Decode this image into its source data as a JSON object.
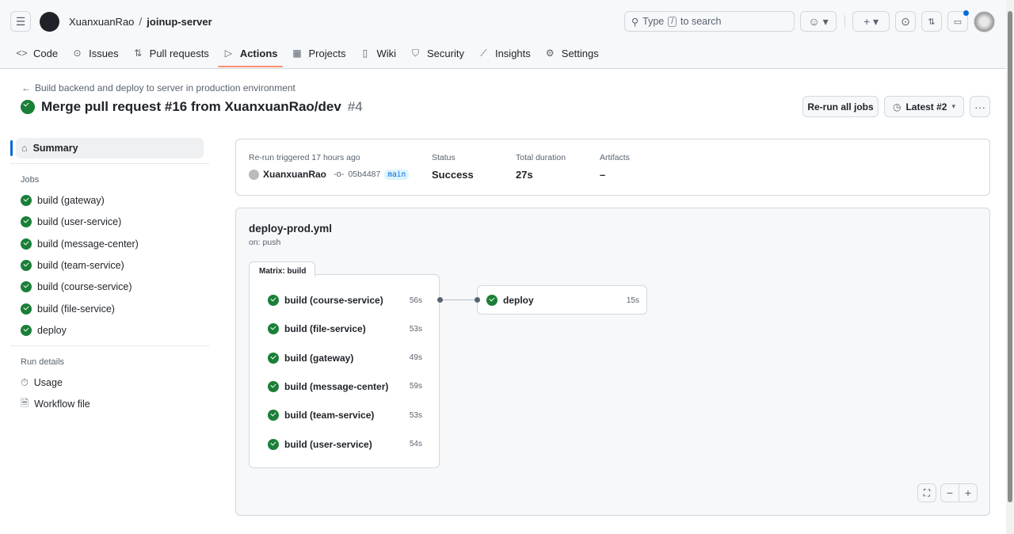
{
  "header": {
    "owner": "XuanxuanRao",
    "separator": "/",
    "repo": "joinup-server",
    "search_prefix": "Type",
    "search_key": "/",
    "search_suffix": "to search",
    "notification_dot_color": "#0969da"
  },
  "nav": [
    {
      "label": "Code",
      "icon": "code-icon"
    },
    {
      "label": "Issues",
      "icon": "issue-icon"
    },
    {
      "label": "Pull requests",
      "icon": "pull-request-icon"
    },
    {
      "label": "Actions",
      "icon": "play-icon",
      "active": true
    },
    {
      "label": "Projects",
      "icon": "table-icon"
    },
    {
      "label": "Wiki",
      "icon": "book-icon"
    },
    {
      "label": "Security",
      "icon": "shield-icon"
    },
    {
      "label": "Insights",
      "icon": "graph-icon"
    },
    {
      "label": "Settings",
      "icon": "gear-icon"
    }
  ],
  "run": {
    "workflow_link": "Build backend and deploy to server in production environment",
    "title": "Merge pull request #16 from XuanxuanRao/dev",
    "number": "#4",
    "rerun_label": "Re-run all jobs",
    "attempt_label": "Latest #2"
  },
  "sidebar": {
    "summary": "Summary",
    "jobs_heading": "Jobs",
    "jobs": [
      "build (gateway)",
      "build (user-service)",
      "build (message-center)",
      "build (team-service)",
      "build (course-service)",
      "build (file-service)",
      "deploy"
    ],
    "details_heading": "Run details",
    "usage": "Usage",
    "workflow_file": "Workflow file"
  },
  "summary": {
    "trigger_label": "Re-run triggered 17 hours ago",
    "actor": "XuanxuanRao",
    "commit": "05b4487",
    "branch": "main",
    "status_label": "Status",
    "status": "Success",
    "duration_label": "Total duration",
    "duration": "27s",
    "artifacts_label": "Artifacts",
    "artifacts": "–"
  },
  "graph": {
    "file": "deploy-prod.yml",
    "trigger": "on: push",
    "matrix_label": "Matrix: build",
    "matrix_jobs": [
      {
        "name": "build (course-service)",
        "duration": "56s"
      },
      {
        "name": "build (file-service)",
        "duration": "53s"
      },
      {
        "name": "build (gateway)",
        "duration": "49s"
      },
      {
        "name": "build (message-center)",
        "duration": "59s"
      },
      {
        "name": "build (team-service)",
        "duration": "53s"
      },
      {
        "name": "build (user-service)",
        "duration": "54s"
      }
    ],
    "deploy": {
      "name": "deploy",
      "duration": "15s"
    },
    "zoom_out": "−",
    "zoom_in": "+"
  },
  "colors": {
    "success": "#1a7f37",
    "accent": "#fd8c73",
    "link": "#0969da"
  }
}
